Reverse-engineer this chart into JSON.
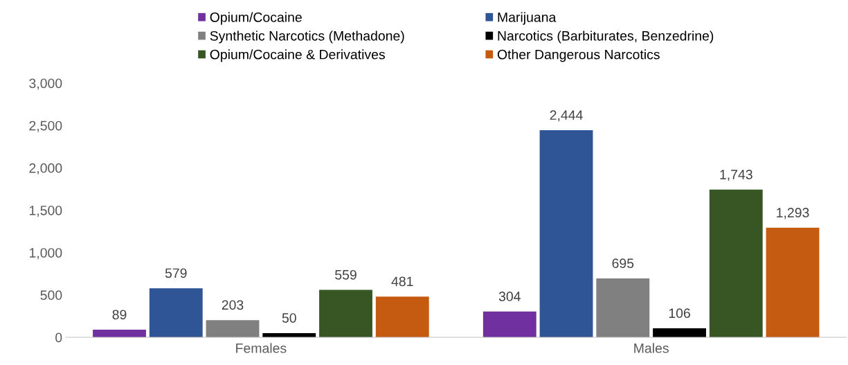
{
  "chart_data": {
    "type": "bar",
    "categories": [
      "Females",
      "Males"
    ],
    "series": [
      {
        "name": "Opium/Cocaine",
        "color": "#7030a0",
        "values": [
          89,
          304
        ],
        "value_labels": [
          "89",
          "304"
        ]
      },
      {
        "name": "Marijuana",
        "color": "#2f5597",
        "values": [
          579,
          2444
        ],
        "value_labels": [
          "579",
          "2,444"
        ]
      },
      {
        "name": "Synthetic Narcotics (Methadone)",
        "color": "#808080",
        "values": [
          203,
          695
        ],
        "value_labels": [
          "203",
          "695"
        ]
      },
      {
        "name": "Narcotics (Barbiturates, Benzedrine)",
        "color": "#000000",
        "values": [
          50,
          106
        ],
        "value_labels": [
          "50",
          "106"
        ]
      },
      {
        "name": "Opium/Cocaine & Derivatives",
        "color": "#375623",
        "values": [
          559,
          1743
        ],
        "value_labels": [
          "559",
          "1,743"
        ]
      },
      {
        "name": "Other Dangerous Narcotics",
        "color": "#c55a11",
        "values": [
          481,
          1293
        ],
        "value_labels": [
          "481",
          "1,293"
        ]
      }
    ],
    "ylim": [
      0,
      3000
    ],
    "yticks": [
      {
        "value": 0,
        "label": "0"
      },
      {
        "value": 500,
        "label": "500"
      },
      {
        "value": 1000,
        "label": "1,000"
      },
      {
        "value": 1500,
        "label": "1,500"
      },
      {
        "value": 2000,
        "label": "2,000"
      },
      {
        "value": 2500,
        "label": "2,500"
      },
      {
        "value": 3000,
        "label": "3,000"
      }
    ],
    "grid": false,
    "legend": "top"
  }
}
